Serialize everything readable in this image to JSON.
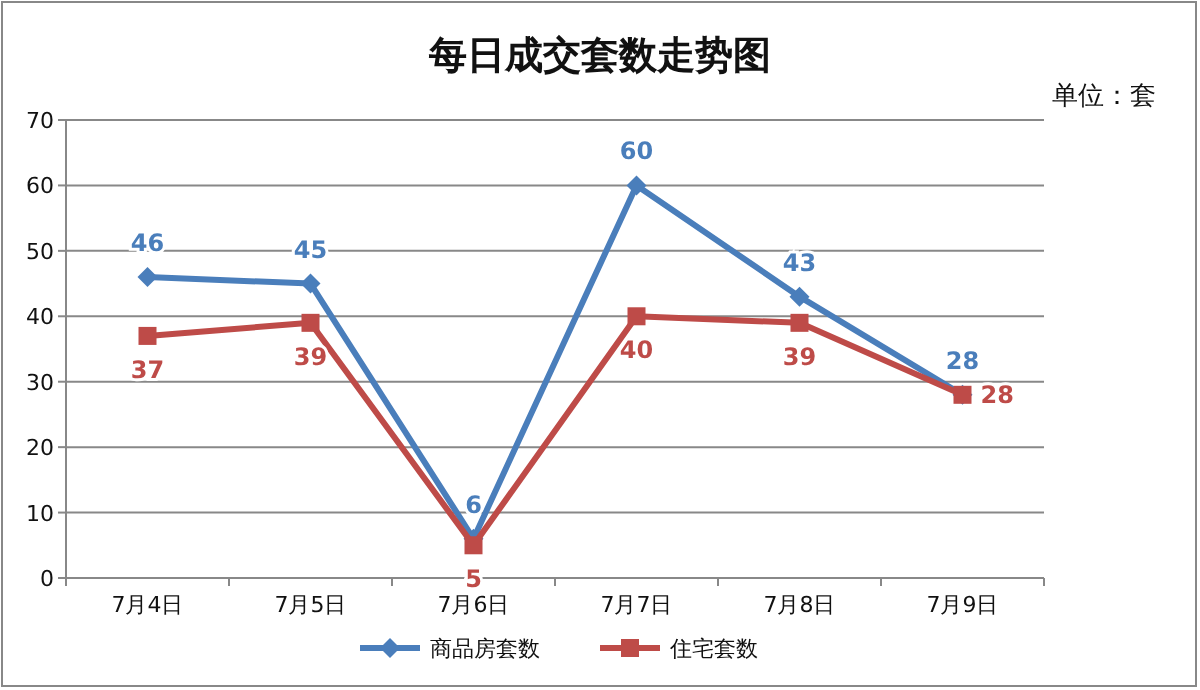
{
  "chart_data": {
    "type": "line",
    "title": "每日成交套数走势图",
    "annotations": [
      "单位：套"
    ],
    "categories": [
      "7月4日",
      "7月5日",
      "7月6日",
      "7月7日",
      "7月8日",
      "7月9日"
    ],
    "series": [
      {
        "name": "商品房套数",
        "color": "#4a7ebb",
        "marker": "diamond",
        "values": [
          46,
          45,
          6,
          60,
          43,
          28
        ]
      },
      {
        "name": "住宅套数",
        "color": "#be4b48",
        "marker": "square",
        "values": [
          37,
          39,
          5,
          40,
          39,
          28
        ]
      }
    ],
    "ylim": [
      0,
      70
    ],
    "yticks": [
      0,
      10,
      20,
      30,
      40,
      50,
      60,
      70
    ],
    "grid": "y",
    "legend": "bottom",
    "data_labels": true
  }
}
